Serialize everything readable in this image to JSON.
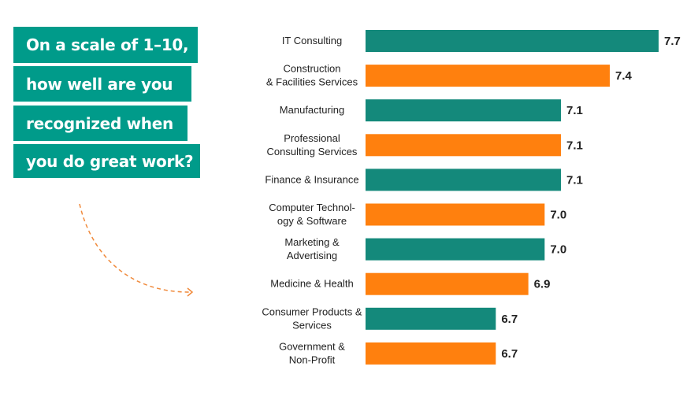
{
  "question": {
    "lines": [
      "On a scale of 1–10,",
      "how well are you",
      "recognized when",
      "you do great work?"
    ]
  },
  "colors": {
    "teal": "#14897b",
    "orange": "#ff800e",
    "box": "#009b8a",
    "arrow": "#f08a3c"
  },
  "chart_data": {
    "type": "bar",
    "orientation": "horizontal",
    "title": "",
    "categories": [
      "IT Consulting",
      "Construction\n& Facilities Services",
      "Manufacturing",
      "Professional\nConsulting Services",
      "Finance & Insurance",
      "Computer Technol-\nogy & Software",
      "Marketing &\nAdvertising",
      "Medicine & Health",
      "Consumer Products &\nServices",
      "Government &\nNon-Profit"
    ],
    "values": [
      7.7,
      7.4,
      7.1,
      7.1,
      7.1,
      7.0,
      7.0,
      6.9,
      6.7,
      6.7
    ],
    "value_labels": [
      "7.7",
      "7.4",
      "7.1",
      "7.1",
      "7.1",
      "7.0",
      "7.0",
      "6.9",
      "6.7",
      "6.7"
    ],
    "bar_colors": [
      "teal",
      "orange",
      "teal",
      "orange",
      "teal",
      "orange",
      "teal",
      "orange",
      "teal",
      "orange"
    ],
    "xlim": [
      5.9,
      7.7
    ],
    "grid": false,
    "legend": "none"
  }
}
